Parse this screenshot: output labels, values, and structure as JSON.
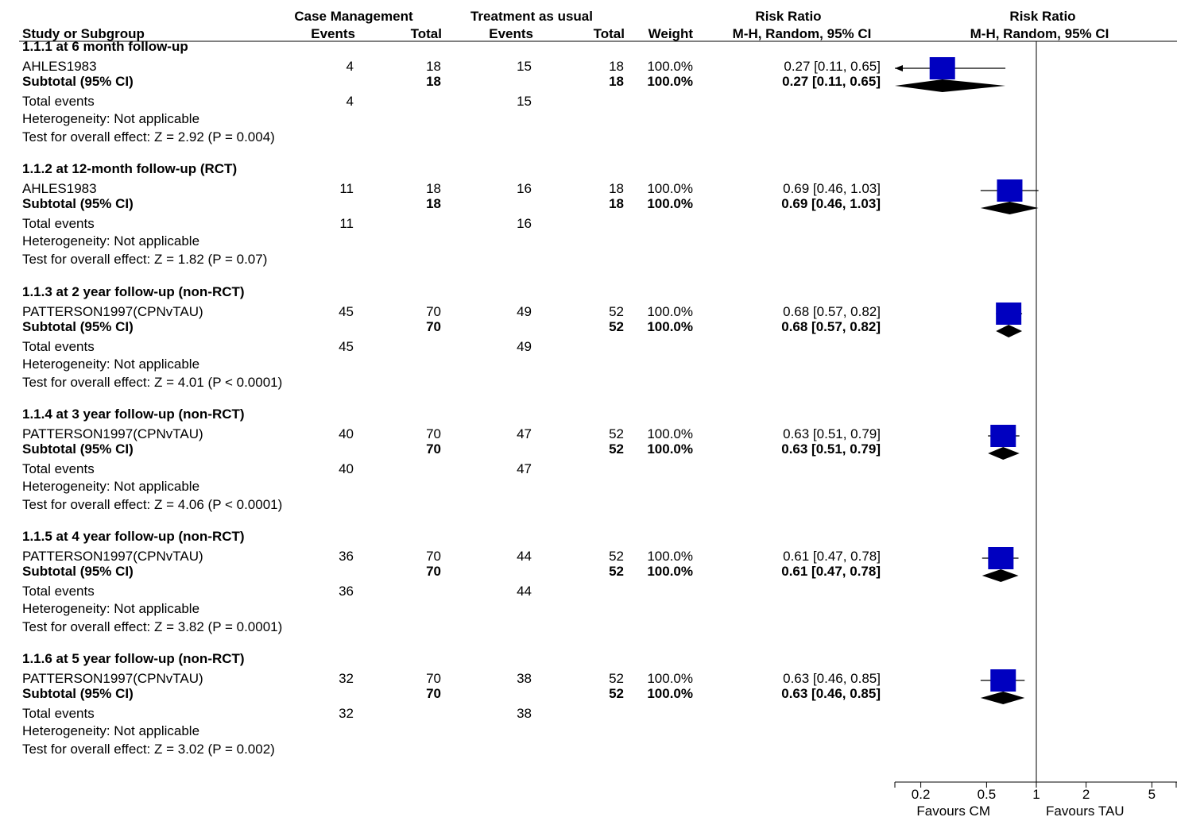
{
  "headers": {
    "group1": "Case Management",
    "group2": "Treatment as usual",
    "rr_top": "Risk Ratio",
    "study": "Study or Subgroup",
    "events1": "Events",
    "total1": "Total",
    "events2": "Events",
    "total2": "Total",
    "weight": "Weight",
    "rr_method": "M-H, Random, 95% CI",
    "plot_top": "Risk Ratio",
    "plot_method": "M-H, Random, 95% CI"
  },
  "labels": {
    "subtotal": "Subtotal (95% CI)",
    "total_events": "Total events",
    "heterogeneity": "Heterogeneity: Not applicable"
  },
  "axis": {
    "ticks": [
      "0.2",
      "0.5",
      "1",
      "2",
      "5"
    ],
    "favours_left": "Favours CM",
    "favours_right": "Favours TAU"
  },
  "colors": {
    "marker": "#0000c0",
    "diamond": "#000000"
  },
  "chart_data": {
    "type": "forest",
    "scale": "log",
    "xlim": [
      0.1,
      10
    ],
    "tick_values": [
      0.2,
      0.5,
      1,
      2,
      5
    ],
    "subgroups": [
      {
        "title": "1.1.1 at 6 month follow-up",
        "study": "AHLES1983",
        "e1": "4",
        "n1": "18",
        "e2": "15",
        "n2": "18",
        "weight": "100.0%",
        "ci_text": "0.27 [0.11, 0.65]",
        "rr": 0.27,
        "lo": 0.11,
        "hi": 0.65,
        "sub_n1": "18",
        "sub_n2": "18",
        "sub_weight": "100.0%",
        "sub_ci_text": "0.27 [0.11, 0.65]",
        "total_e1": "4",
        "total_e2": "15",
        "effect": "Test for overall effect: Z = 2.92 (P = 0.004)"
      },
      {
        "title": "1.1.2 at 12-month follow-up (RCT)",
        "study": "AHLES1983",
        "e1": "11",
        "n1": "18",
        "e2": "16",
        "n2": "18",
        "weight": "100.0%",
        "ci_text": "0.69 [0.46, 1.03]",
        "rr": 0.69,
        "lo": 0.46,
        "hi": 1.03,
        "sub_n1": "18",
        "sub_n2": "18",
        "sub_weight": "100.0%",
        "sub_ci_text": "0.69 [0.46, 1.03]",
        "total_e1": "11",
        "total_e2": "16",
        "effect": "Test for overall effect: Z = 1.82 (P = 0.07)"
      },
      {
        "title": "1.1.3 at 2 year follow-up (non-RCT)",
        "study": "PATTERSON1997(CPNvTAU)",
        "e1": "45",
        "n1": "70",
        "e2": "49",
        "n2": "52",
        "weight": "100.0%",
        "ci_text": "0.68 [0.57, 0.82]",
        "rr": 0.68,
        "lo": 0.57,
        "hi": 0.82,
        "sub_n1": "70",
        "sub_n2": "52",
        "sub_weight": "100.0%",
        "sub_ci_text": "0.68 [0.57, 0.82]",
        "total_e1": "45",
        "total_e2": "49",
        "effect": "Test for overall effect: Z = 4.01 (P < 0.0001)"
      },
      {
        "title": "1.1.4 at 3 year follow-up (non-RCT)",
        "study": "PATTERSON1997(CPNvTAU)",
        "e1": "40",
        "n1": "70",
        "e2": "47",
        "n2": "52",
        "weight": "100.0%",
        "ci_text": "0.63 [0.51, 0.79]",
        "rr": 0.63,
        "lo": 0.51,
        "hi": 0.79,
        "sub_n1": "70",
        "sub_n2": "52",
        "sub_weight": "100.0%",
        "sub_ci_text": "0.63 [0.51, 0.79]",
        "total_e1": "40",
        "total_e2": "47",
        "effect": "Test for overall effect: Z = 4.06 (P < 0.0001)"
      },
      {
        "title": "1.1.5 at 4 year follow-up (non-RCT)",
        "study": "PATTERSON1997(CPNvTAU)",
        "e1": "36",
        "n1": "70",
        "e2": "44",
        "n2": "52",
        "weight": "100.0%",
        "ci_text": "0.61 [0.47, 0.78]",
        "rr": 0.61,
        "lo": 0.47,
        "hi": 0.78,
        "sub_n1": "70",
        "sub_n2": "52",
        "sub_weight": "100.0%",
        "sub_ci_text": "0.61 [0.47, 0.78]",
        "total_e1": "36",
        "total_e2": "44",
        "effect": "Test for overall effect: Z = 3.82 (P = 0.0001)"
      },
      {
        "title": "1.1.6 at 5 year follow-up (non-RCT)",
        "study": "PATTERSON1997(CPNvTAU)",
        "e1": "32",
        "n1": "70",
        "e2": "38",
        "n2": "52",
        "weight": "100.0%",
        "ci_text": "0.63 [0.46, 0.85]",
        "rr": 0.63,
        "lo": 0.46,
        "hi": 0.85,
        "sub_n1": "70",
        "sub_n2": "52",
        "sub_weight": "100.0%",
        "sub_ci_text": "0.63 [0.46, 0.85]",
        "total_e1": "32",
        "total_e2": "38",
        "effect": "Test for overall effect: Z = 3.02 (P = 0.002)"
      }
    ]
  }
}
